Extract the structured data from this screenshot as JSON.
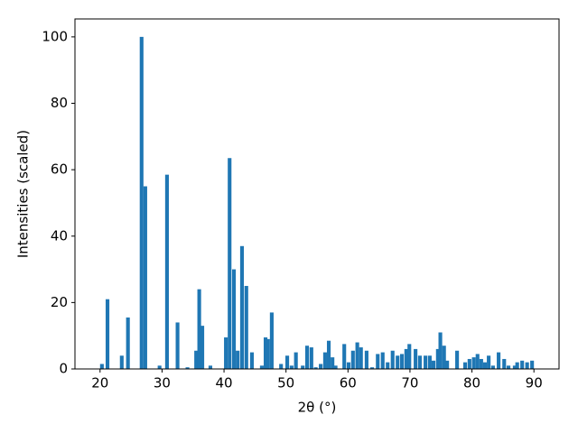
{
  "chart_data": {
    "type": "bar",
    "color": "#1f77b4",
    "bar_width": 0.6,
    "xlabel": "2θ (°)",
    "ylabel": "Intensities (scaled)",
    "x": [
      20.3,
      21.2,
      23.5,
      24.5,
      26.7,
      27.3,
      29.6,
      30.8,
      32.5,
      34.1,
      35.5,
      36.0,
      36.5,
      37.8,
      40.3,
      40.9,
      41.6,
      42.2,
      42.9,
      43.6,
      44.5,
      46.1,
      46.7,
      47.1,
      47.7,
      49.2,
      50.2,
      50.9,
      51.6,
      52.7,
      53.4,
      54.1,
      54.8,
      55.6,
      56.3,
      56.9,
      57.5,
      58.0,
      59.4,
      60.1,
      60.8,
      61.5,
      62.1,
      63.0,
      63.9,
      64.8,
      65.6,
      66.4,
      67.2,
      68.0,
      68.7,
      69.4,
      69.9,
      70.9,
      71.6,
      72.5,
      73.2,
      73.8,
      74.5,
      74.9,
      75.5,
      76.0,
      77.6,
      78.9,
      79.6,
      80.3,
      80.9,
      81.5,
      82.1,
      82.7,
      83.4,
      84.3,
      85.2,
      85.9,
      86.9,
      87.3,
      88.1,
      88.9,
      89.7
    ],
    "values": [
      1.5,
      21,
      4,
      15.5,
      100,
      55,
      1,
      58.5,
      14,
      0.5,
      5.5,
      24,
      13,
      1,
      9.5,
      63.5,
      30,
      5.5,
      37,
      25,
      5,
      1,
      9.5,
      9,
      17,
      1.5,
      4,
      1,
      5,
      1,
      7,
      6.5,
      0.5,
      1.5,
      5,
      8.5,
      3.5,
      1,
      7.5,
      2,
      5.5,
      8,
      6.5,
      5.5,
      0.5,
      4.5,
      5,
      2,
      5.5,
      4,
      4.5,
      6,
      7.5,
      6,
      4,
      4,
      4,
      2.5,
      6,
      11,
      7,
      2.5,
      5.5,
      2,
      3,
      3.5,
      4.5,
      3,
      2,
      4,
      1,
      5,
      3,
      1,
      1,
      2,
      2.5,
      2,
      2.5
    ],
    "xlim": [
      15.95,
      94.05
    ],
    "ylim": [
      0,
      105.4
    ],
    "xticks": [
      20,
      30,
      40,
      50,
      60,
      70,
      80,
      90
    ],
    "yticks": [
      0,
      20,
      40,
      60,
      80,
      100
    ]
  }
}
